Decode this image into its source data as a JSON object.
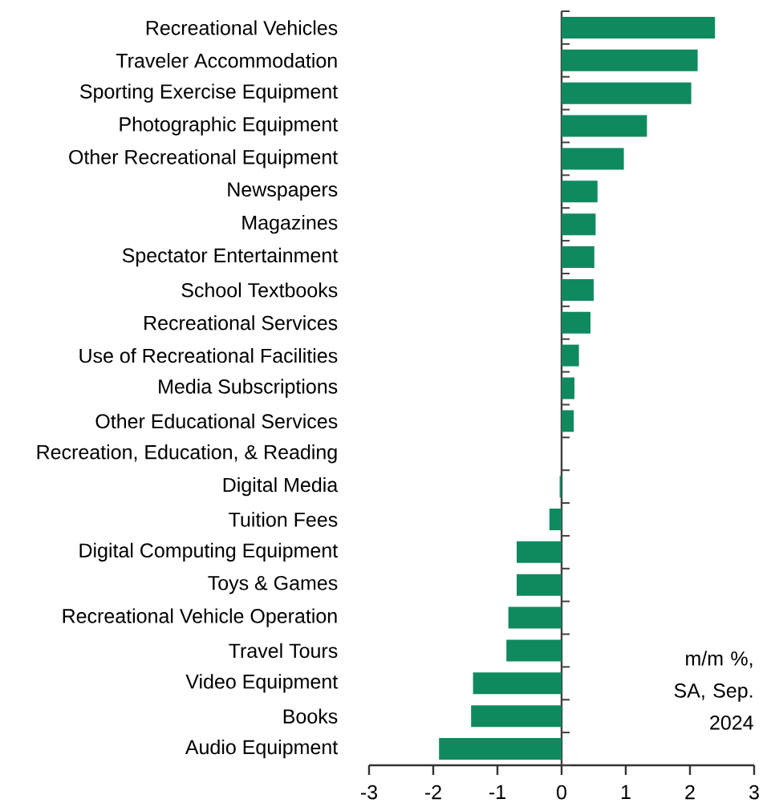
{
  "chart_data": {
    "type": "bar",
    "orientation": "horizontal",
    "categories": [
      "Recreational Vehicles",
      "Traveler Accommodation",
      "Sporting Exercise Equipment",
      "Photographic Equipment",
      "Other Recreational Equipment",
      "Newspapers",
      "Magazines",
      "Spectator Entertainment",
      "School Textbooks",
      "Recreational Services",
      "Use of Recreational Facilities",
      "Media Subscriptions",
      "Other Educational Services",
      "Recreation, Education, & Reading",
      "Digital Media",
      "Tuition Fees",
      "Digital Computing Equipment",
      "Toys & Games",
      "Recreational Vehicle Operation",
      "Travel Tours",
      "Video Equipment",
      "Books",
      "Audio Equipment"
    ],
    "values": [
      2.39,
      2.12,
      2.02,
      1.33,
      0.97,
      0.56,
      0.53,
      0.51,
      0.5,
      0.45,
      0.27,
      0.2,
      0.19,
      0,
      -0.03,
      -0.19,
      -0.7,
      -0.7,
      -0.83,
      -0.86,
      -1.38,
      -1.41,
      -1.91
    ],
    "color": "#0f8a5f",
    "xlim": [
      -3,
      3
    ],
    "xticks": [
      -3,
      -2,
      -1,
      0,
      1,
      2,
      3
    ],
    "annotations": [
      "m/m %, SA, Sep. 2024"
    ]
  }
}
